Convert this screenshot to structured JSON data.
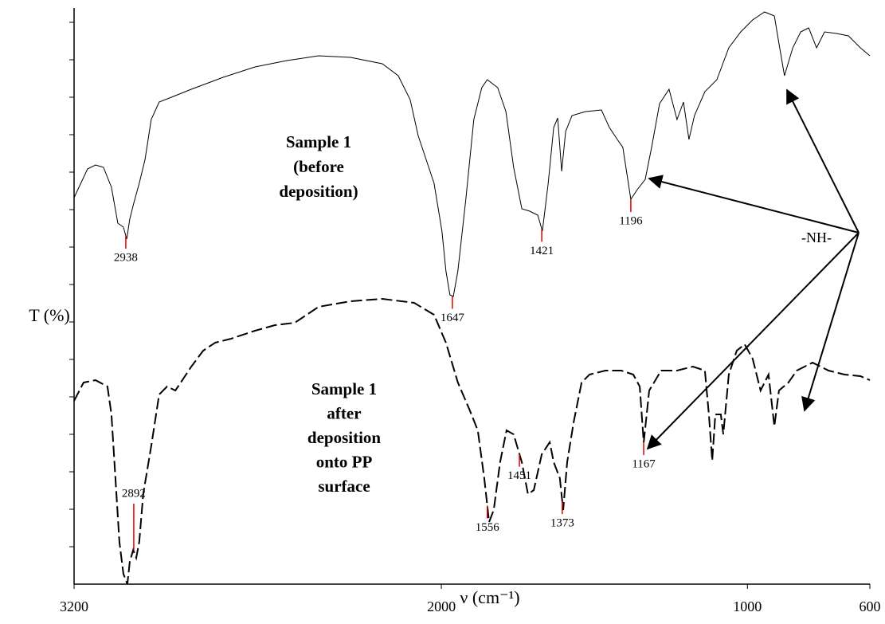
{
  "chart_data": {
    "type": "line",
    "xlabel": "ν  (cm⁻¹)",
    "ylabel": "T (%)",
    "annotation": "-NH-",
    "xlim": [
      3200,
      600
    ],
    "xticks": [
      3200,
      2000,
      1000,
      600
    ],
    "ylim": [
      0,
      723
    ],
    "yticks": [
      47,
      94,
      141,
      188,
      235,
      282,
      329,
      376,
      423,
      470,
      517,
      564,
      611,
      658,
      705
    ],
    "series": [
      {
        "label": [
          "Sample 1",
          "(before",
          "deposition)"
        ],
        "color": "#000000",
        "style": "solid",
        "x": [
          3200,
          3156,
          3130,
          3104,
          3078,
          3057,
          3039,
          3028,
          3018,
          3005,
          2987,
          2968,
          2948,
          2922,
          2882,
          2817,
          2713,
          2609,
          2505,
          2401,
          2297,
          2193,
          2141,
          2102,
          2076,
          2050,
          2024,
          1998,
          1985,
          1972,
          1961,
          1946,
          1920,
          1894,
          1868,
          1850,
          1816,
          1789,
          1764,
          1737,
          1711,
          1685,
          1670,
          1651,
          1633,
          1620,
          1607,
          1594,
          1573,
          1529,
          1477,
          1451,
          1425,
          1407,
          1381,
          1360,
          1334,
          1313,
          1287,
          1256,
          1230,
          1209,
          1191,
          1173,
          1139,
          1100,
          1061,
          1022,
          983,
          944,
          912,
          899,
          879,
          852,
          826,
          800,
          774,
          748,
          709,
          670,
          631,
          600
        ],
        "values": [
          485,
          521,
          526,
          523,
          498,
          453,
          448,
          433,
          458,
          478,
          503,
          533,
          583,
          605,
          611,
          621,
          636,
          649,
          657,
          663,
          661,
          653,
          638,
          608,
          563,
          533,
          503,
          443,
          393,
          363,
          361,
          393,
          483,
          583,
          623,
          633,
          623,
          593,
          523,
          471,
          468,
          463,
          443,
          503,
          573,
          585,
          518,
          568,
          588,
          593,
          595,
          573,
          558,
          548,
          483,
          495,
          508,
          548,
          603,
          621,
          583,
          605,
          558,
          588,
          618,
          633,
          673,
          693,
          708,
          718,
          713,
          683,
          638,
          673,
          693,
          698,
          673,
          693,
          691,
          688,
          673,
          663
        ],
        "peaks": [
          {
            "text": "2938",
            "x": 3031
          },
          {
            "text": "1647",
            "x": 1964
          },
          {
            "text": "1421",
            "x": 1672
          },
          {
            "text": "1196",
            "x": 1381
          }
        ]
      },
      {
        "label": [
          "Sample 1",
          "after",
          "deposition",
          "onto PP",
          "surface"
        ],
        "color": "#000000",
        "style": "dashed",
        "x": [
          3200,
          3169,
          3130,
          3091,
          3078,
          3065,
          3052,
          3039,
          3026,
          3018,
          3007,
          2997,
          2987,
          2974,
          2948,
          2922,
          2896,
          2869,
          2817,
          2778,
          2739,
          2687,
          2609,
          2544,
          2479,
          2401,
          2297,
          2193,
          2089,
          2024,
          1985,
          1946,
          1907,
          1881,
          1860,
          1844,
          1829,
          1808,
          1787,
          1764,
          1737,
          1717,
          1698,
          1672,
          1646,
          1633,
          1613,
          1602,
          1589,
          1568,
          1542,
          1516,
          1464,
          1412,
          1373,
          1352,
          1339,
          1321,
          1282,
          1230,
          1178,
          1139,
          1126,
          1115,
          1105,
          1087,
          1079,
          1061,
          1035,
          1009,
          983,
          957,
          931,
          912,
          897,
          866,
          839,
          787,
          735,
          683,
          631,
          600
        ],
        "values": [
          230,
          253,
          256,
          248,
          213,
          133,
          53,
          13,
          0,
          28,
          43,
          33,
          53,
          113,
          173,
          238,
          248,
          243,
          273,
          293,
          303,
          308,
          318,
          325,
          328,
          348,
          355,
          358,
          353,
          338,
          303,
          253,
          218,
          193,
          133,
          78,
          93,
          153,
          193,
          188,
          153,
          113,
          118,
          163,
          178,
          153,
          133,
          93,
          153,
          203,
          253,
          263,
          268,
          268,
          263,
          248,
          178,
          243,
          268,
          268,
          273,
          268,
          213,
          155,
          213,
          213,
          188,
          263,
          293,
          301,
          283,
          243,
          263,
          198,
          243,
          253,
          268,
          278,
          268,
          263,
          261,
          256
        ],
        "peaks": [
          {
            "text": "2892",
            "x": 3005
          },
          {
            "text": "1556",
            "x": 1850
          },
          {
            "text": "1451",
            "x": 1745
          },
          {
            "text": "1373",
            "x": 1605
          },
          {
            "text": "1167",
            "x": 1339
          }
        ]
      }
    ]
  }
}
